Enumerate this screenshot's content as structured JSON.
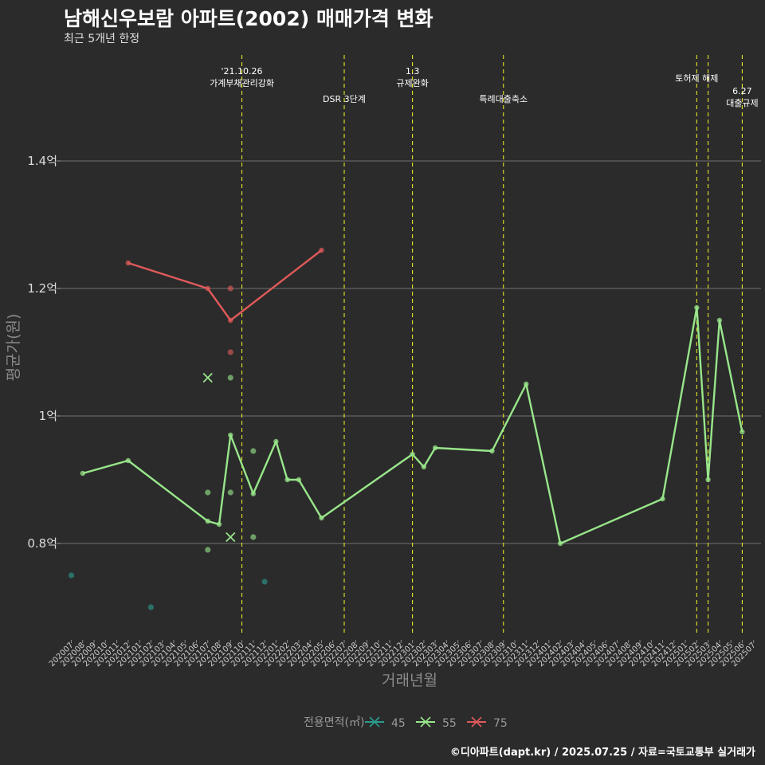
{
  "title": "남해신우보람 아파트(2002) 매매가격 변화",
  "subtitle": "최근 5개년 한정",
  "caption": "©디아파트(dapt.kr) / 2025.07.25 / 자료=국토교통부 실거래가",
  "chart_data": {
    "type": "line",
    "xlabel": "거래년월",
    "ylabel": "평균가(원)",
    "ylim": [
      0.66,
      1.57
    ],
    "yticks": [
      {
        "value": 0.8,
        "label": "0.8억"
      },
      {
        "value": 1.0,
        "label": "1억"
      },
      {
        "value": 1.2,
        "label": "1.2억"
      },
      {
        "value": 1.4,
        "label": "1.4억"
      }
    ],
    "categories": [
      "202007",
      "202008",
      "202009",
      "202010",
      "202011",
      "202012",
      "202101",
      "202102",
      "202103",
      "202104",
      "202105",
      "202106",
      "202107",
      "202108",
      "202109",
      "202110",
      "202111",
      "202112",
      "202201",
      "202202",
      "202203",
      "202204",
      "202205",
      "202206",
      "202207",
      "202208",
      "202209",
      "202210",
      "202211",
      "202212",
      "202301",
      "202302",
      "202303",
      "202304",
      "202305",
      "202306",
      "202307",
      "202308",
      "202309",
      "202310",
      "202311",
      "202312",
      "202401",
      "202402",
      "202403",
      "202404",
      "202405",
      "202406",
      "202407",
      "202408",
      "202409",
      "202410",
      "202411",
      "202412",
      "202501",
      "202502",
      "202503",
      "202504",
      "202505",
      "202506",
      "202507"
    ],
    "legend": {
      "title": "전용면적(㎡)",
      "position": "bottom"
    },
    "series": [
      {
        "name": "45",
        "color": "#2a9d8f",
        "line": [],
        "points": [
          {
            "x": "202007",
            "y": 0.75
          },
          {
            "x": "202102",
            "y": 0.7
          },
          {
            "x": "202112",
            "y": 0.74
          }
        ],
        "marks": []
      },
      {
        "name": "55",
        "color": "#98e68a",
        "line": [
          {
            "x": "202008",
            "y": 0.91
          },
          {
            "x": "202012",
            "y": 0.93
          },
          {
            "x": "202107",
            "y": 0.835
          },
          {
            "x": "202108",
            "y": 0.83
          },
          {
            "x": "202109",
            "y": 0.97
          },
          {
            "x": "202111",
            "y": 0.878
          },
          {
            "x": "202201",
            "y": 0.96
          },
          {
            "x": "202202",
            "y": 0.9
          },
          {
            "x": "202203",
            "y": 0.9
          },
          {
            "x": "202205",
            "y": 0.84
          },
          {
            "x": "202301",
            "y": 0.94
          },
          {
            "x": "202302",
            "y": 0.92
          },
          {
            "x": "202303",
            "y": 0.95
          },
          {
            "x": "202308",
            "y": 0.945
          },
          {
            "x": "202311",
            "y": 1.05
          },
          {
            "x": "202402",
            "y": 0.8
          },
          {
            "x": "202411",
            "y": 0.87
          },
          {
            "x": "202502",
            "y": 1.17
          },
          {
            "x": "202503",
            "y": 0.9
          },
          {
            "x": "202504",
            "y": 1.15
          },
          {
            "x": "202506",
            "y": 0.975
          }
        ],
        "points": [
          {
            "x": "202107",
            "y": 0.88
          },
          {
            "x": "202107",
            "y": 0.79
          },
          {
            "x": "202109",
            "y": 1.06
          },
          {
            "x": "202109",
            "y": 0.88
          },
          {
            "x": "202111",
            "y": 0.945
          },
          {
            "x": "202111",
            "y": 0.81
          }
        ],
        "marks": [
          {
            "x": "202107",
            "y": 1.06
          },
          {
            "x": "202109",
            "y": 0.81
          }
        ]
      },
      {
        "name": "75",
        "color": "#e05a5a",
        "line": [
          {
            "x": "202012",
            "y": 1.24
          },
          {
            "x": "202107",
            "y": 1.2
          },
          {
            "x": "202109",
            "y": 1.15
          },
          {
            "x": "202205",
            "y": 1.26
          }
        ],
        "points": [
          {
            "x": "202109",
            "y": 1.2
          },
          {
            "x": "202109",
            "y": 1.1
          }
        ],
        "marks": []
      }
    ],
    "annotations": [
      {
        "x": "202110",
        "lines": [
          "'21.10.26",
          "가계부채관리강화"
        ],
        "row": 0
      },
      {
        "x": "202207",
        "lines": [
          "DSR 3단계"
        ],
        "row": 1
      },
      {
        "x": "202301",
        "lines": [
          "1.3",
          "규제완화"
        ],
        "row": 0
      },
      {
        "x": "202309",
        "lines": [
          "특례대출축소"
        ],
        "row": 1
      },
      {
        "x": "202502",
        "lines": [
          "토허제 해제"
        ],
        "row": 2
      },
      {
        "x": "202503",
        "lines": [],
        "row": 2
      },
      {
        "x": "202506",
        "lines": [
          "6.27",
          "대출규제"
        ],
        "row": 3
      }
    ]
  }
}
